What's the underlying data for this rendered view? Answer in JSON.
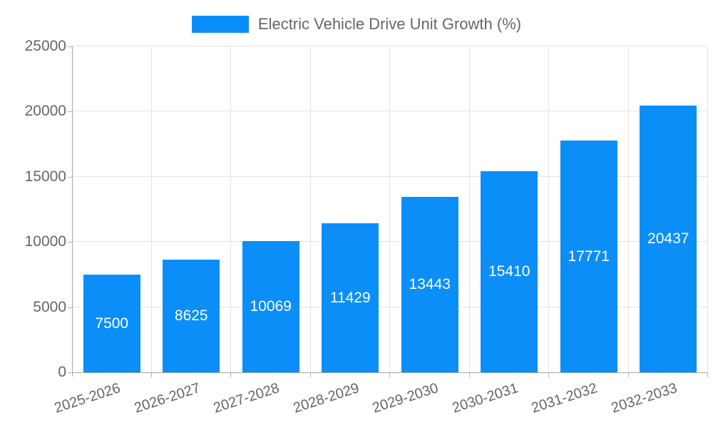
{
  "chart_data": {
    "type": "bar",
    "title": "Electric Vehicle Drive Unit Growth (%)",
    "categories": [
      "2025-2026",
      "2026-2027",
      "2027-2028",
      "2028-2029",
      "2029-2030",
      "2030-2031",
      "2031-2032",
      "2032-2033"
    ],
    "values": [
      7500,
      8625,
      10069,
      11429,
      13443,
      15410,
      17771,
      20437
    ],
    "xlabel": "",
    "ylabel": "",
    "ylim": [
      0,
      25000
    ],
    "yticks": [
      0,
      5000,
      10000,
      15000,
      20000,
      25000
    ],
    "ytick_labels": [
      "0",
      "5000",
      "10000",
      "15000",
      "20000",
      "25000"
    ],
    "grid": true,
    "legend_position": "top-center",
    "value_labels_inside_bars": true,
    "x_tick_rotation_deg": -18,
    "colors": {
      "bar": "#0b8ef8",
      "value_label": "#ffffff",
      "axis_text": "#666666",
      "legend_text": "#666666",
      "gridline": "#e3e3e3",
      "axis_line": "#a6a6a6",
      "tick_mark": "#b3b3b3",
      "background": "#ffffff"
    }
  }
}
